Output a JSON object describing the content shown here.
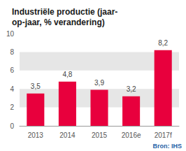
{
  "chart_data": {
    "type": "bar",
    "title": "Industriële productie (jaar-\nop-jaar, % verandering)",
    "categories": [
      "2013",
      "2014",
      "2015",
      "2016e",
      "2017f"
    ],
    "values": [
      3.5,
      4.8,
      3.9,
      3.2,
      8.2
    ],
    "value_labels": [
      "3,5",
      "4,8",
      "3,9",
      "3,2",
      "8,2"
    ],
    "data_labels": true,
    "color": "#e8003d",
    "ylim": [
      0,
      10
    ],
    "yticks": [
      0,
      2,
      4,
      6,
      8,
      10
    ],
    "grid": true,
    "annotations": [
      {
        "text": "Bron: IHS",
        "color": "#1f5fa6"
      }
    ]
  }
}
